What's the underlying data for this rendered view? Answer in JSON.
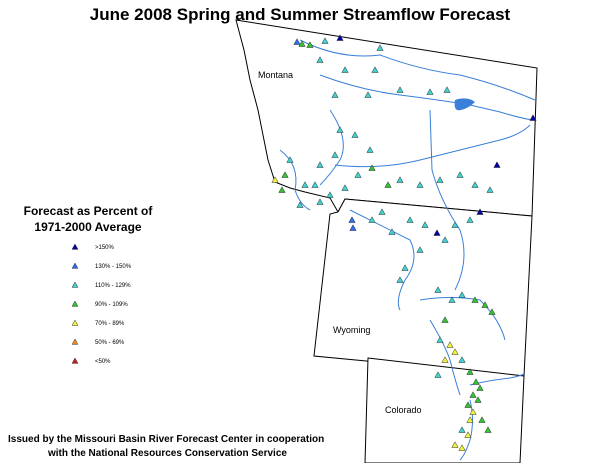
{
  "title": "June 2008 Spring and Summer Streamflow Forecast",
  "states": [
    {
      "label": "Montana"
    },
    {
      "label": "Wyoming"
    },
    {
      "label": "Colorado"
    }
  ],
  "legend": {
    "title_lines": [
      "Forecast as Percent of",
      "1971-2000 Average"
    ],
    "items": [
      {
        "label": ">150%",
        "color": "#0000a8"
      },
      {
        "label": "130% - 150%",
        "color": "#2f6cf0"
      },
      {
        "label": "110% - 129%",
        "color": "#3fd0d0"
      },
      {
        "label": "90% - 109%",
        "color": "#33c233"
      },
      {
        "label": "70% - 89%",
        "color": "#f2f23a"
      },
      {
        "label": "50% - 69%",
        "color": "#f08c1e"
      },
      {
        "label": "<50%",
        "color": "#c81e1e"
      }
    ]
  },
  "footer": [
    "Issued by the Missouri Basin River Forecast Center in cooperation",
    "with the National Resources Conservation Service"
  ]
}
